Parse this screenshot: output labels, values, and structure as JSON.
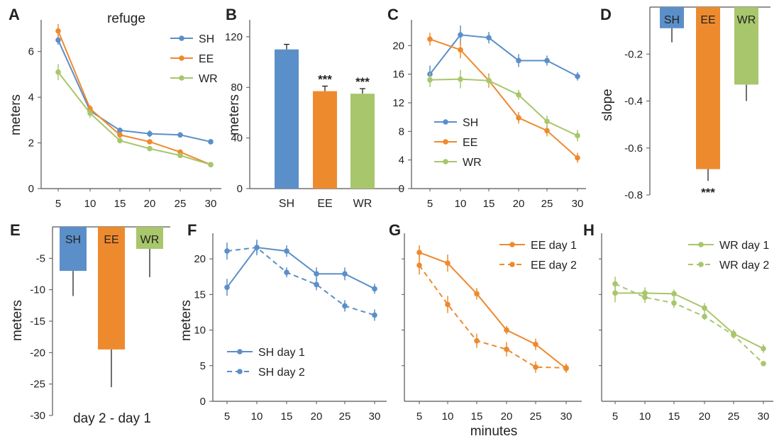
{
  "colors": {
    "SH": "#5b8fc9",
    "EE": "#ee8a2e",
    "WR": "#a8c66c",
    "axis": "#555555"
  },
  "chart_data": [
    {
      "panel": "A",
      "type": "line",
      "title": "refuge",
      "xlabel": "",
      "ylabel": "meters",
      "x": [
        5,
        10,
        15,
        20,
        25,
        30
      ],
      "xticks": [
        "5",
        "10",
        "15",
        "20",
        "25",
        "30"
      ],
      "ylim": [
        0,
        7.2
      ],
      "yticks": [
        0,
        2,
        4,
        6
      ],
      "ytick_labels": [
        "0",
        "2",
        "4",
        "6"
      ],
      "legend": [
        "SH",
        "EE",
        "WR"
      ],
      "legend_position": "top-right",
      "series": [
        {
          "name": "SH",
          "values": [
            6.5,
            3.4,
            2.55,
            2.4,
            2.35,
            2.05
          ],
          "err": [
            0.2,
            0.15,
            0.12,
            0.15,
            0.12,
            0.12
          ],
          "dashed": false
        },
        {
          "name": "EE",
          "values": [
            6.9,
            3.5,
            2.35,
            2.05,
            1.6,
            1.05
          ],
          "err": [
            0.3,
            0.15,
            0.12,
            0.1,
            0.1,
            0.1
          ],
          "dashed": false
        },
        {
          "name": "WR",
          "values": [
            5.1,
            3.3,
            2.1,
            1.75,
            1.45,
            1.05
          ],
          "err": [
            0.35,
            0.2,
            0.12,
            0.1,
            0.1,
            0.1
          ],
          "dashed": false
        }
      ]
    },
    {
      "panel": "B",
      "type": "bar",
      "ylabel": "meters",
      "categories": [
        "SH",
        "EE",
        "WR"
      ],
      "values": [
        110,
        77,
        75
      ],
      "err": [
        4,
        4,
        4
      ],
      "significance": [
        "",
        "***",
        "***"
      ],
      "ylim": [
        0,
        130
      ],
      "yticks": [
        0,
        40,
        80,
        120
      ],
      "ytick_labels": [
        "0",
        "40",
        "80",
        "120"
      ]
    },
    {
      "panel": "C",
      "type": "line",
      "ylabel": "",
      "x": [
        5,
        10,
        15,
        20,
        25,
        30
      ],
      "xticks": [
        "5",
        "10",
        "15",
        "20",
        "25",
        "30"
      ],
      "ylim": [
        0,
        23
      ],
      "yticks": [
        0,
        4,
        8,
        12,
        16,
        20
      ],
      "ytick_labels": [
        "0",
        "4",
        "8",
        "12",
        "16",
        "20"
      ],
      "legend": [
        "SH",
        "EE",
        "WR"
      ],
      "legend_position": "center-left",
      "series": [
        {
          "name": "SH",
          "values": [
            16,
            21.5,
            21.1,
            17.9,
            17.9,
            15.7
          ],
          "err": [
            1.2,
            1.3,
            0.8,
            0.9,
            0.7,
            0.6
          ],
          "dashed": false
        },
        {
          "name": "EE",
          "values": [
            20.9,
            19.4,
            15.1,
            9.9,
            8.1,
            4.3
          ],
          "err": [
            0.9,
            1.2,
            1.0,
            0.8,
            0.8,
            0.7
          ],
          "dashed": false
        },
        {
          "name": "WR",
          "values": [
            15.2,
            15.3,
            15.1,
            13.1,
            9.4,
            7.4
          ],
          "err": [
            1.0,
            1.3,
            0.8,
            0.7,
            0.8,
            0.8
          ],
          "dashed": false
        }
      ]
    },
    {
      "panel": "D",
      "type": "bar",
      "ylabel": "slope",
      "categories": [
        "SH",
        "EE",
        "WR"
      ],
      "values": [
        -0.09,
        -0.69,
        -0.33
      ],
      "err": [
        0.06,
        0.05,
        0.07
      ],
      "significance": [
        "",
        "***",
        ""
      ],
      "ylim": [
        -0.8,
        0.0
      ],
      "yticks": [
        -0.2,
        -0.4,
        -0.6,
        -0.8
      ],
      "ytick_labels": [
        "-0.2",
        "-0.4",
        "-0.6",
        "-0.8"
      ]
    },
    {
      "panel": "E",
      "type": "bar",
      "ylabel": "meters",
      "xlabel": "day 2 - day 1",
      "categories": [
        "SH",
        "EE",
        "WR"
      ],
      "values": [
        -7,
        -19.5,
        -3.5
      ],
      "err": [
        4,
        6,
        4.5
      ],
      "ylim": [
        -30,
        0
      ],
      "yticks": [
        -5,
        -10,
        -15,
        -20,
        -25,
        -30
      ],
      "ytick_labels": [
        "-5",
        "-10",
        "-15",
        "-20",
        "-25",
        "-30"
      ]
    },
    {
      "panel": "F",
      "type": "line",
      "ylabel": "meters",
      "x": [
        5,
        10,
        15,
        20,
        25,
        30
      ],
      "xticks": [
        "5",
        "10",
        "15",
        "20",
        "25",
        "30"
      ],
      "ylim": [
        0,
        23
      ],
      "yticks": [
        0,
        5,
        10,
        15,
        20
      ],
      "ytick_labels": [
        "0",
        "5",
        "10",
        "15",
        "20"
      ],
      "legend": [
        "SH day 1",
        "SH day 2"
      ],
      "legend_position": "bottom-left",
      "series": [
        {
          "name": "SH day 1",
          "color": "SH",
          "values": [
            16,
            21.6,
            21.1,
            17.9,
            17.9,
            15.8
          ],
          "err": [
            1.2,
            1.1,
            0.8,
            0.9,
            0.9,
            0.7
          ],
          "dashed": false
        },
        {
          "name": "SH day 2",
          "color": "SH",
          "values": [
            21.1,
            21.6,
            18.1,
            16.4,
            13.4,
            12.1
          ],
          "err": [
            1.2,
            0.8,
            0.7,
            0.8,
            0.8,
            0.8
          ],
          "dashed": true
        }
      ]
    },
    {
      "panel": "G",
      "type": "line",
      "xlabel": "minutes",
      "x": [
        5,
        10,
        15,
        20,
        25,
        30
      ],
      "xticks": [
        "5",
        "10",
        "15",
        "20",
        "25",
        "30"
      ],
      "ylim": [
        0,
        23
      ],
      "legend": [
        "EE day 1",
        "EE day 2"
      ],
      "legend_position": "top-right",
      "series": [
        {
          "name": "EE day 1",
          "color": "EE",
          "values": [
            20.9,
            19.4,
            15.1,
            10.0,
            8.0,
            4.6
          ],
          "err": [
            1.0,
            1.2,
            0.8,
            0.6,
            0.8,
            0.6
          ],
          "dashed": false
        },
        {
          "name": "EE day 2",
          "color": "EE",
          "values": [
            19.1,
            13.6,
            8.5,
            7.3,
            4.8,
            4.7
          ],
          "err": [
            1.3,
            1.2,
            1.0,
            1.0,
            0.8,
            0.6
          ],
          "dashed": true
        }
      ]
    },
    {
      "panel": "H",
      "type": "line",
      "x": [
        5,
        10,
        15,
        20,
        25,
        30
      ],
      "xticks": [
        "5",
        "10",
        "15",
        "20",
        "25",
        "30"
      ],
      "ylim": [
        0,
        23
      ],
      "legend": [
        "WR day 1",
        "WR day 2"
      ],
      "legend_position": "top-right",
      "series": [
        {
          "name": "WR day 1",
          "color": "WR",
          "values": [
            15.2,
            15.2,
            15.1,
            13.1,
            9.5,
            7.4
          ],
          "err": [
            1.3,
            0.8,
            0.6,
            0.7,
            0.6,
            0.6
          ],
          "dashed": false
        },
        {
          "name": "WR day 2",
          "color": "WR",
          "values": [
            16.5,
            14.6,
            13.8,
            11.9,
            9.3,
            5.3
          ],
          "err": [
            1.0,
            0.8,
            0.7,
            0.5,
            0.5,
            0.3
          ],
          "dashed": true
        }
      ]
    }
  ]
}
